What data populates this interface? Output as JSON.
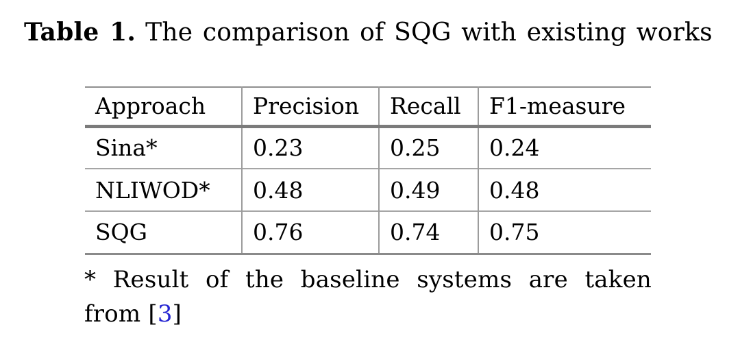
{
  "caption": {
    "label": "Table 1.",
    "text": "The comparison of SQG with existing works"
  },
  "table": {
    "headers": {
      "approach": "Approach",
      "precision": "Precision",
      "recall": "Recall",
      "f1": "F1-measure"
    },
    "rows": [
      {
        "approach": "Sina*",
        "precision": "0.23",
        "recall": "0.25",
        "f1": "0.24"
      },
      {
        "approach": "NLIWOD*",
        "precision": "0.48",
        "recall": "0.49",
        "f1": "0.48"
      },
      {
        "approach": "SQG",
        "precision": "0.76",
        "recall": "0.74",
        "f1": "0.75"
      }
    ]
  },
  "footnote": {
    "line1": "* Result of the baseline systems are taken",
    "line2_prefix": "from [",
    "citation": "3",
    "line2_suffix": "]"
  },
  "colors": {
    "citation_blue": "#2525d2",
    "rule_thick": "#7b7b7b",
    "rule_thin": "#a5a5a5",
    "rule_vertical": "#9c9c9c",
    "rule_outer": "#8f8f8f",
    "text": "#000000",
    "background": "#ffffff"
  }
}
